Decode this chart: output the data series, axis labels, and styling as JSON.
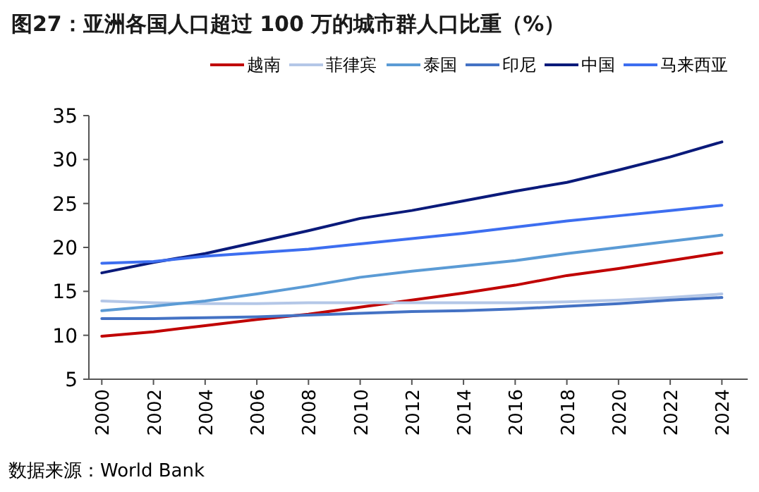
{
  "chart_data": {
    "type": "line",
    "title": "图27：亚洲各国人口超过 100 万的城市群人口比重（%）",
    "annotations": [
      "数据来源：World Bank"
    ],
    "x": [
      2000,
      2002,
      2004,
      2006,
      2008,
      2010,
      2012,
      2014,
      2016,
      2018,
      2020,
      2022,
      2024
    ],
    "xlim": [
      1999.5,
      2025
    ],
    "xticks": [
      2000,
      2002,
      2004,
      2006,
      2008,
      2010,
      2012,
      2014,
      2016,
      2018,
      2020,
      2022,
      2024
    ],
    "ylim": [
      5,
      35
    ],
    "yticks": [
      5,
      10,
      15,
      20,
      25,
      30,
      35
    ],
    "grid": false,
    "legend": "top",
    "marker": "none",
    "line_style": "solid",
    "series": [
      {
        "name": "越南",
        "color": "#c00000",
        "values": [
          9.9,
          10.4,
          11.1,
          11.8,
          12.4,
          13.2,
          14.0,
          14.8,
          15.7,
          16.8,
          17.6,
          18.5,
          19.4
        ]
      },
      {
        "name": "菲律宾",
        "color": "#b4c7e7",
        "values": [
          13.9,
          13.7,
          13.6,
          13.6,
          13.7,
          13.7,
          13.7,
          13.7,
          13.7,
          13.8,
          14.0,
          14.3,
          14.7
        ]
      },
      {
        "name": "泰国",
        "color": "#5b9bd5",
        "values": [
          12.8,
          13.3,
          13.9,
          14.7,
          15.6,
          16.6,
          17.3,
          17.9,
          18.5,
          19.3,
          20.0,
          20.7,
          21.4
        ]
      },
      {
        "name": "印尼",
        "color": "#4472c4",
        "values": [
          11.9,
          11.9,
          12.0,
          12.1,
          12.3,
          12.5,
          12.7,
          12.8,
          13.0,
          13.3,
          13.6,
          14.0,
          14.3
        ]
      },
      {
        "name": "中国",
        "color": "#0a1a7a",
        "values": [
          17.1,
          18.3,
          19.3,
          20.6,
          21.9,
          23.3,
          24.2,
          25.3,
          26.4,
          27.4,
          28.8,
          30.3,
          32.0
        ]
      },
      {
        "name": "马来西亚",
        "color": "#3d6ef0",
        "values": [
          18.2,
          18.4,
          19.0,
          19.4,
          19.8,
          20.4,
          21.0,
          21.6,
          22.3,
          23.0,
          23.6,
          24.2,
          24.8
        ]
      }
    ]
  }
}
